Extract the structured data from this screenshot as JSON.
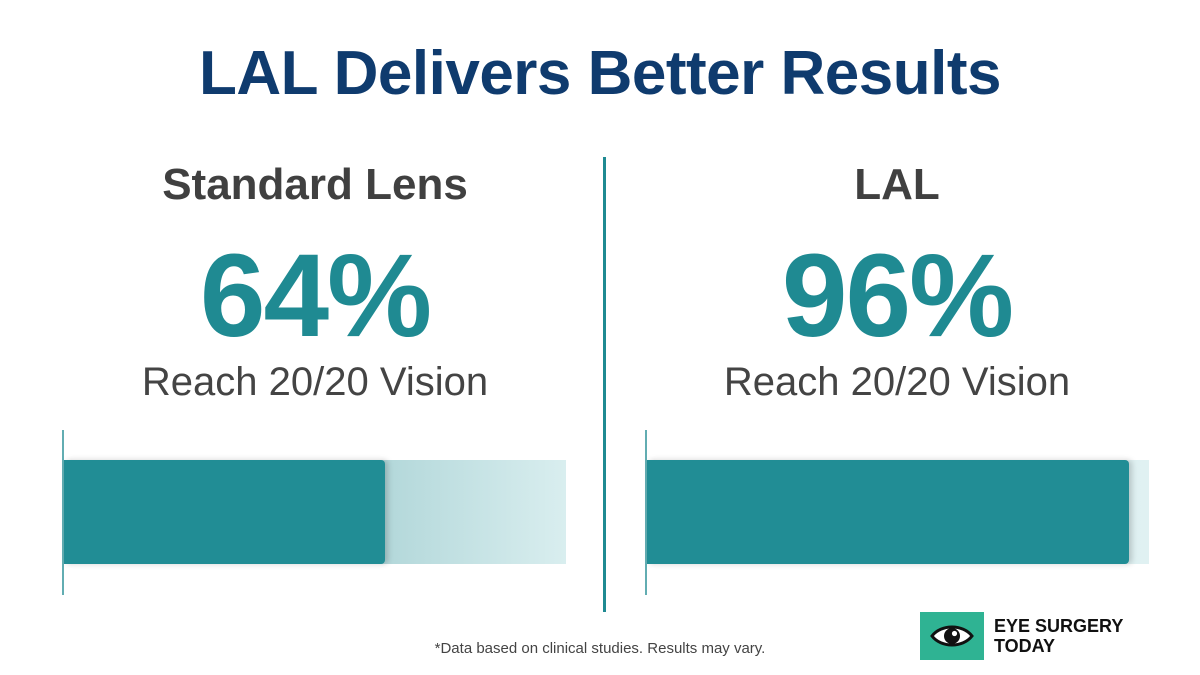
{
  "title": "LAL Delivers Better Results",
  "chart_data": {
    "type": "bar",
    "categories": [
      "Standard Lens",
      "LAL"
    ],
    "values": [
      64,
      96
    ],
    "value_labels": [
      "64%",
      "96%"
    ],
    "caption": "Reach 20/20 Vision",
    "ylim": [
      0,
      100
    ],
    "unit": "%",
    "grid": false
  },
  "footnote": "*Data based on clinical studies. Results may vary.",
  "logo": {
    "line1": "EYE SURGERY",
    "line2": "TODAY",
    "icon": "eye-icon"
  },
  "colors": {
    "title": "#0f3b6e",
    "accent": "#1f8a92",
    "logo_bg": "#2fb393"
  }
}
